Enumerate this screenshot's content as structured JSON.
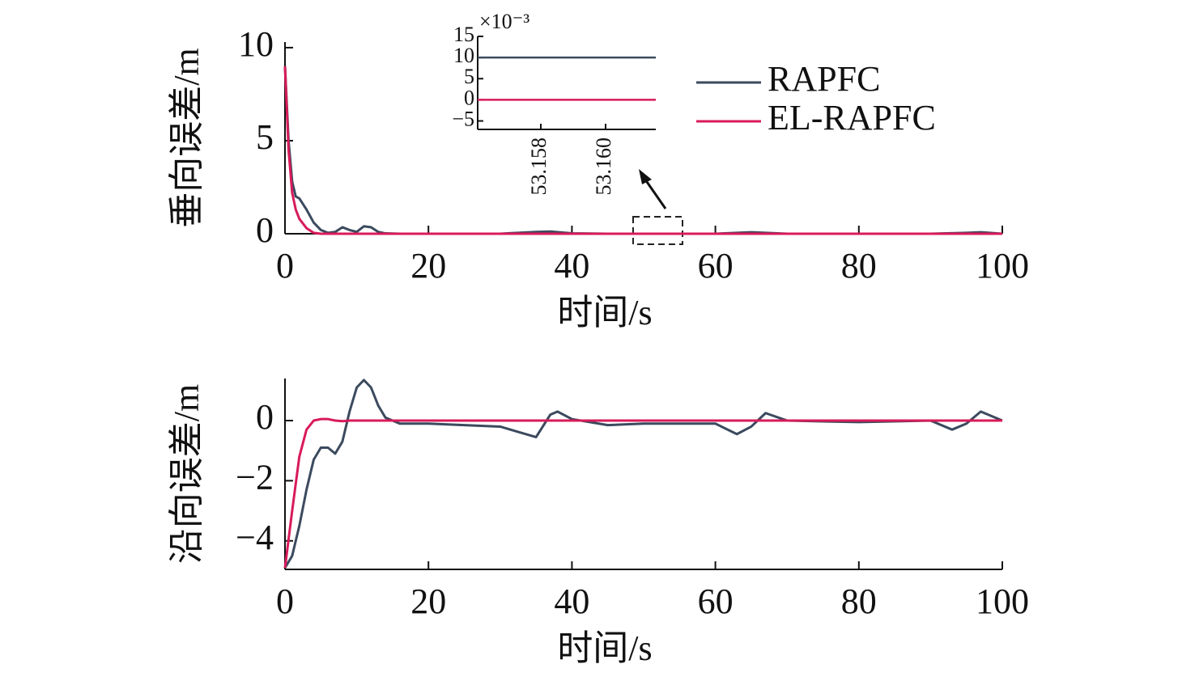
{
  "chart_data": [
    {
      "type": "line",
      "y_label": "垂向误差/m",
      "x_label": "时间/s",
      "x": [
        0,
        0.5,
        1,
        1.5,
        2,
        3,
        4,
        5,
        6,
        7,
        8,
        9,
        10,
        11,
        12,
        13,
        14,
        16,
        20,
        30,
        35,
        37,
        40,
        45,
        50,
        60,
        65,
        70,
        80,
        90,
        95,
        97,
        100
      ],
      "series": [
        {
          "name": "RAPFC",
          "color": "#3b4a5e",
          "values": [
            9,
            5,
            2.8,
            2.0,
            1.9,
            1.3,
            0.6,
            0.2,
            0.05,
            0.1,
            0.35,
            0.2,
            0.1,
            0.4,
            0.35,
            0.1,
            0.02,
            0,
            0,
            0,
            0.1,
            0.12,
            0.02,
            0,
            0,
            0,
            0.08,
            0,
            0,
            0,
            0.05,
            0.08,
            0
          ]
        },
        {
          "name": "EL-RAPFC",
          "color": "#d81b5a",
          "values": [
            9,
            4.5,
            2.2,
            1.3,
            0.8,
            0.3,
            0.05,
            0,
            0,
            0,
            0,
            0,
            0,
            0,
            0,
            0,
            0,
            0,
            0,
            0,
            0,
            0,
            0,
            0,
            0,
            0,
            0,
            0,
            0,
            0,
            0,
            0,
            0
          ]
        }
      ],
      "xlim": [
        0,
        100
      ],
      "xticks": [
        0,
        20,
        40,
        60,
        80,
        100
      ],
      "ylim": [
        0,
        10.3
      ],
      "yticks": [
        0,
        5,
        10
      ],
      "legend": "upper right"
    },
    {
      "type": "line",
      "annotation": "×10⁻³",
      "x": [
        53.15605,
        53.16155
      ],
      "series": [
        {
          "name": "RAPFC",
          "color": "#3b4a5e",
          "values": [
            10,
            10
          ]
        },
        {
          "name": "EL-RAPFC",
          "color": "#d81b5a",
          "values": [
            0,
            0
          ]
        }
      ],
      "xlim": [
        53.15605,
        53.16155
      ],
      "xticks": [
        53.158,
        {
          "value": 53.16,
          "label": "53.160"
        }
      ],
      "ylim": [
        -7,
        15
      ],
      "yticks": [
        {
          "value": -5,
          "label": "−5"
        },
        0,
        5,
        10,
        15
      ]
    },
    {
      "type": "line",
      "y_label": "沿向误差/m",
      "x_label": "时间/s",
      "x": [
        0,
        1,
        2,
        3,
        4,
        5,
        6,
        7,
        8,
        9,
        10,
        11,
        12,
        13,
        14,
        16,
        20,
        30,
        35,
        37,
        38,
        40,
        45,
        50,
        60,
        63,
        65,
        67,
        70,
        80,
        90,
        93,
        95,
        97,
        100
      ],
      "series": [
        {
          "name": "RAPFC",
          "color": "#3b4a5e",
          "values": [
            -4.9,
            -4.5,
            -3.5,
            -2.3,
            -1.3,
            -0.9,
            -0.9,
            -1.1,
            -0.7,
            0.3,
            1.1,
            1.35,
            1.1,
            0.5,
            0.1,
            -0.1,
            -0.1,
            -0.2,
            -0.55,
            0.2,
            0.3,
            0.05,
            -0.15,
            -0.1,
            -0.1,
            -0.45,
            -0.2,
            0.25,
            0,
            -0.05,
            0,
            -0.3,
            -0.1,
            0.3,
            0
          ]
        },
        {
          "name": "EL-RAPFC",
          "color": "#d81b5a",
          "values": [
            -4.9,
            -3,
            -1.2,
            -0.3,
            0,
            0.05,
            0.05,
            0,
            -0.02,
            0,
            0,
            0,
            0,
            0,
            0,
            0,
            0,
            0,
            0,
            0,
            0,
            0,
            0,
            0,
            0,
            0,
            0,
            0,
            0,
            0,
            0,
            0,
            0,
            0,
            0
          ]
        }
      ],
      "xlim": [
        0,
        100
      ],
      "xticks": [
        0,
        20,
        40,
        60,
        80,
        100
      ],
      "ylim": [
        -4.95,
        1.4
      ],
      "yticks": [
        {
          "value": -4,
          "label": "−4"
        },
        {
          "value": -2,
          "label": "−2"
        },
        0
      ]
    }
  ]
}
